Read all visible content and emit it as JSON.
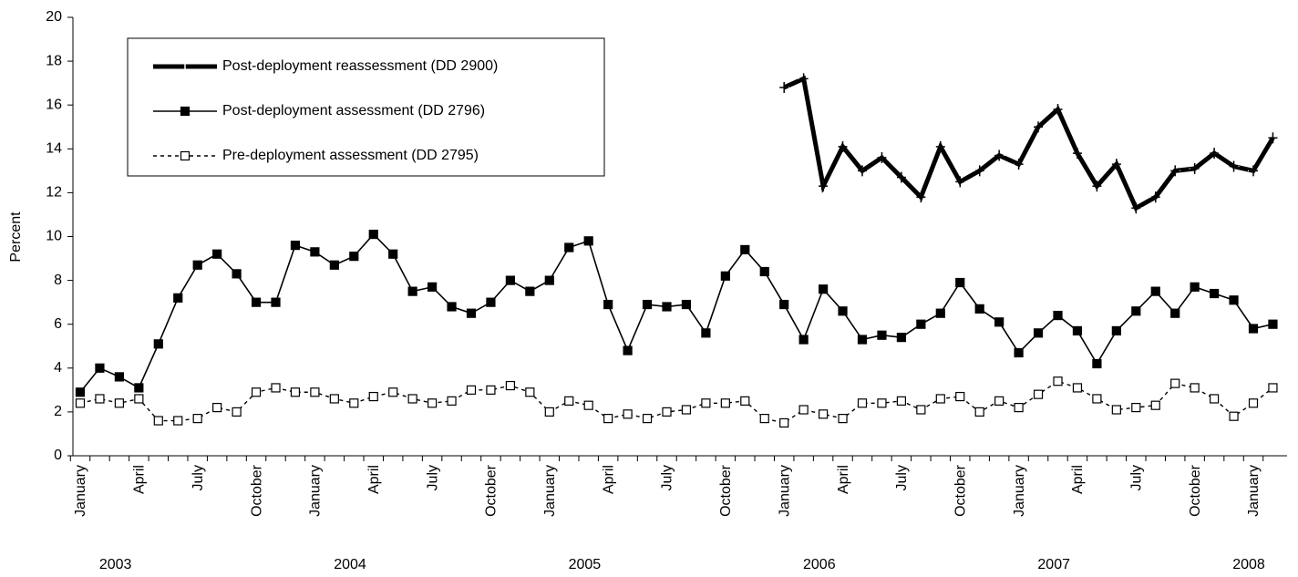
{
  "chart_data": {
    "type": "line",
    "y_label": "Percent",
    "categories": [
      "January",
      null,
      null,
      "April",
      null,
      null,
      "July",
      null,
      null,
      "October",
      null,
      null,
      "January",
      null,
      null,
      "April",
      null,
      null,
      "July",
      null,
      null,
      "October",
      null,
      null,
      "January",
      null,
      null,
      "April",
      null,
      null,
      "July",
      null,
      null,
      "October",
      null,
      null,
      "January",
      null,
      null,
      "April",
      null,
      null,
      "July",
      null,
      null,
      "October",
      null,
      null,
      "January",
      null,
      null,
      "April",
      null,
      null,
      "July",
      null,
      null,
      "October",
      null,
      null,
      "January",
      null
    ],
    "year_labels": [
      "2003",
      "2004",
      "2005",
      "2006",
      "2007",
      "2008"
    ],
    "ylim": [
      0,
      20
    ],
    "yticks": [
      0,
      2,
      4,
      6,
      8,
      10,
      12,
      14,
      16,
      18,
      20
    ],
    "series": [
      {
        "name": "Post-deployment reassessment (DD 2900)",
        "color": "#000000",
        "style": "thick-plus",
        "values": [
          null,
          null,
          null,
          null,
          null,
          null,
          null,
          null,
          null,
          null,
          null,
          null,
          null,
          null,
          null,
          null,
          null,
          null,
          null,
          null,
          null,
          null,
          null,
          null,
          null,
          null,
          null,
          null,
          null,
          null,
          null,
          null,
          null,
          null,
          null,
          null,
          16.8,
          17.2,
          12.3,
          14.1,
          13.0,
          13.6,
          12.7,
          11.8,
          14.1,
          12.5,
          13.0,
          13.7,
          13.3,
          15.0,
          15.8,
          13.8,
          12.3,
          13.3,
          11.3,
          11.8,
          13.0,
          13.1,
          13.8,
          13.2,
          13.0,
          14.5
        ]
      },
      {
        "name": "Post-deployment assessment (DD 2796)",
        "color": "#000000",
        "style": "solid-square",
        "values": [
          2.9,
          4.0,
          3.6,
          3.1,
          5.1,
          7.2,
          8.7,
          9.2,
          8.3,
          7.0,
          7.0,
          9.6,
          9.3,
          8.7,
          9.1,
          10.1,
          9.2,
          7.5,
          7.7,
          6.8,
          6.5,
          7.0,
          8.0,
          7.5,
          8.0,
          9.5,
          9.8,
          6.9,
          4.8,
          6.9,
          6.8,
          6.9,
          5.6,
          8.2,
          9.4,
          8.4,
          6.9,
          5.3,
          7.6,
          6.6,
          5.3,
          5.5,
          5.4,
          6.0,
          6.5,
          7.9,
          6.7,
          6.1,
          4.7,
          5.6,
          6.4,
          5.7,
          4.2,
          5.7,
          6.6,
          7.5,
          6.5,
          7.7,
          7.4,
          7.1,
          5.8,
          6.0
        ]
      },
      {
        "name": "Pre-deployment assessment (DD 2795)",
        "color": "#000000",
        "style": "dashed-open-square",
        "values": [
          2.4,
          2.6,
          2.4,
          2.6,
          1.6,
          1.6,
          1.7,
          2.2,
          2.0,
          2.9,
          3.1,
          2.9,
          2.9,
          2.6,
          2.4,
          2.7,
          2.9,
          2.6,
          2.4,
          2.5,
          3.0,
          3.0,
          3.2,
          2.9,
          2.0,
          2.5,
          2.3,
          1.7,
          1.9,
          1.7,
          2.0,
          2.1,
          2.4,
          2.4,
          2.5,
          1.7,
          1.5,
          2.1,
          1.9,
          1.7,
          2.4,
          2.4,
          2.5,
          2.1,
          2.6,
          2.7,
          2.0,
          2.5,
          2.2,
          2.8,
          3.4,
          3.1,
          2.6,
          2.1,
          2.2,
          2.3,
          3.3,
          3.1,
          2.6,
          1.8,
          2.4,
          3.1
        ]
      }
    ]
  }
}
